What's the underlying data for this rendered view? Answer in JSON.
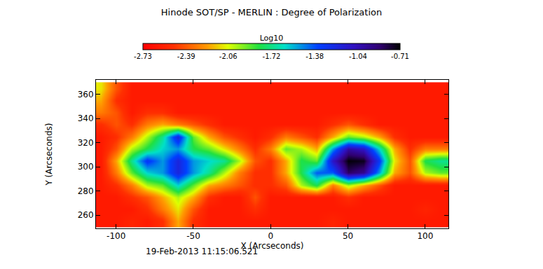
{
  "chart_data": {
    "type": "heatmap",
    "title": "Hinode SOT/SP - MERLIN : Degree of Polarization",
    "xlabel": "X (Arcseconds)",
    "ylabel": "Y (Arcseconds)",
    "annotations": [
      "19-Feb-2013 11:15:06.521"
    ],
    "xlim": [
      -113,
      115
    ],
    "ylim": [
      249,
      372
    ],
    "xticks": [
      -100,
      -50,
      0,
      50,
      100
    ],
    "yticks": [
      260,
      280,
      300,
      320,
      340,
      360
    ],
    "x": [
      -110,
      -100,
      -90,
      -80,
      -70,
      -60,
      -50,
      -40,
      -30,
      -20,
      -10,
      0,
      10,
      20,
      30,
      40,
      50,
      60,
      70,
      80,
      90,
      100,
      110
    ],
    "y": [
      255,
      265,
      275,
      285,
      295,
      305,
      315,
      325,
      335,
      345,
      355,
      365
    ],
    "z": [
      [
        -2.6,
        -2.6,
        -2.55,
        -2.6,
        -2.5,
        -2.2,
        -2.5,
        -2.6,
        -2.6,
        -2.6,
        -2.6,
        -2.6,
        -2.6,
        -2.6,
        -2.6,
        -2.55,
        -2.6,
        -2.6,
        -2.6,
        -2.6,
        -2.6,
        -2.6,
        -2.6
      ],
      [
        -2.6,
        -2.6,
        -2.6,
        -2.5,
        -2.3,
        -2.1,
        -2.4,
        -2.6,
        -2.6,
        -2.6,
        -2.5,
        -2.6,
        -2.6,
        -2.6,
        -2.6,
        -2.6,
        -2.6,
        -2.6,
        -2.6,
        -2.6,
        -2.6,
        -2.55,
        -2.6
      ],
      [
        -2.6,
        -2.6,
        -2.5,
        -2.4,
        -2.2,
        -2.0,
        -2.2,
        -2.5,
        -2.6,
        -2.6,
        -2.4,
        -2.6,
        -2.6,
        -2.6,
        -2.6,
        -2.6,
        -2.5,
        -2.6,
        -2.6,
        -2.6,
        -2.6,
        -2.6,
        -2.6
      ],
      [
        -2.6,
        -2.5,
        -2.3,
        -2.0,
        -1.9,
        -1.6,
        -1.9,
        -2.2,
        -2.3,
        -2.4,
        -2.5,
        -2.5,
        -2.4,
        -2.0,
        -1.8,
        -2.3,
        -2.0,
        -2.2,
        -2.4,
        -2.6,
        -2.6,
        -2.6,
        -2.6
      ],
      [
        -2.6,
        -2.3,
        -1.9,
        -1.6,
        -1.5,
        -1.2,
        -1.5,
        -1.7,
        -2.0,
        -2.3,
        -2.5,
        -2.5,
        -2.2,
        -1.8,
        -1.4,
        -1.4,
        -0.85,
        -0.95,
        -1.5,
        -2.2,
        -2.4,
        -2.0,
        -1.9
      ],
      [
        -2.6,
        -2.2,
        -1.7,
        -1.3,
        -1.5,
        -1.2,
        -1.5,
        -1.6,
        -1.7,
        -2.0,
        -2.4,
        -2.5,
        -2.2,
        -1.8,
        -1.9,
        -1.1,
        -0.72,
        -0.75,
        -1.3,
        -2.1,
        -2.4,
        -1.8,
        -1.7
      ],
      [
        -2.6,
        -2.4,
        -2.0,
        -1.8,
        -1.6,
        -1.5,
        -1.8,
        -1.9,
        -2.1,
        -2.3,
        -2.5,
        -2.3,
        -1.9,
        -2.0,
        -2.2,
        -1.5,
        -1.0,
        -1.1,
        -1.6,
        -2.2,
        -2.5,
        -2.3,
        -2.3
      ],
      [
        -2.6,
        -2.5,
        -2.3,
        -2.0,
        -1.7,
        -1.2,
        -1.9,
        -2.2,
        -2.4,
        -2.5,
        -2.6,
        -2.5,
        -2.3,
        -2.4,
        -2.5,
        -2.2,
        -1.9,
        -2.0,
        -2.2,
        -2.5,
        -2.6,
        -2.6,
        -2.6
      ],
      [
        -2.5,
        -2.4,
        -2.5,
        -2.3,
        -2.2,
        -2.3,
        -2.4,
        -2.5,
        -2.6,
        -2.6,
        -2.6,
        -2.6,
        -2.6,
        -2.6,
        -2.6,
        -2.5,
        -2.4,
        -2.5,
        -2.6,
        -2.6,
        -2.6,
        -2.6,
        -2.6
      ],
      [
        -2.3,
        -2.4,
        -2.6,
        -2.5,
        -2.5,
        -2.6,
        -2.6,
        -2.6,
        -2.6,
        -2.6,
        -2.6,
        -2.6,
        -2.6,
        -2.6,
        -2.6,
        -2.6,
        -2.6,
        -2.6,
        -2.6,
        -2.6,
        -2.6,
        -2.6,
        -2.6
      ],
      [
        -2.2,
        -2.5,
        -2.6,
        -2.6,
        -2.6,
        -2.6,
        -2.6,
        -2.6,
        -2.6,
        -2.6,
        -2.6,
        -2.6,
        -2.6,
        -2.6,
        -2.6,
        -2.6,
        -2.6,
        -2.6,
        -2.6,
        -2.6,
        -2.6,
        -2.6,
        -2.6
      ],
      [
        -2.1,
        -2.4,
        -2.6,
        -2.6,
        -2.6,
        -2.6,
        -2.6,
        -2.6,
        -2.6,
        -2.6,
        -2.6,
        -2.6,
        -2.6,
        -2.6,
        -2.6,
        -2.6,
        -2.6,
        -2.6,
        -2.6,
        -2.6,
        -2.6,
        -2.6,
        -2.6
      ]
    ],
    "colorbar": {
      "title": "Log10",
      "range": [
        -2.73,
        -0.71
      ],
      "ticks": [
        -2.73,
        -2.39,
        -2.06,
        -1.72,
        -1.38,
        -1.04,
        -0.71
      ]
    }
  }
}
